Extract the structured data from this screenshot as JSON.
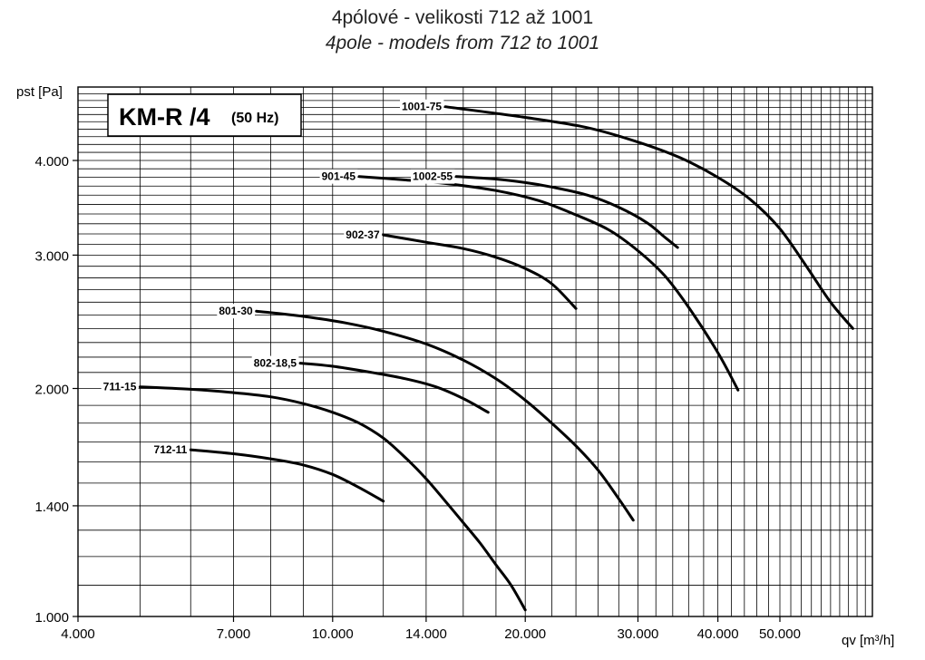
{
  "chart_data": {
    "type": "line",
    "title": "4pólové - velikosti 712 až 1001",
    "subtitle": "4pole - models from 712 to 1001",
    "xlabel": "qv [m³/h]",
    "ylabel": "pst [Pa]",
    "xscale": "log",
    "yscale": "log",
    "xlim": [
      4000,
      75000
    ],
    "ylim": [
      1000,
      5400
    ],
    "grid": true,
    "legend": "none",
    "xticks": [
      {
        "value": 4000,
        "label": "4.000"
      },
      {
        "value": 7000,
        "label": "7.000"
      },
      {
        "value": 10000,
        "label": "10.000"
      },
      {
        "value": 14000,
        "label": "14.000"
      },
      {
        "value": 20000,
        "label": "20.000"
      },
      {
        "value": 30000,
        "label": "30.000"
      },
      {
        "value": 40000,
        "label": "40.000"
      },
      {
        "value": 50000,
        "label": "50.000"
      }
    ],
    "yticks": [
      {
        "value": 1000,
        "label": "1.000"
      },
      {
        "value": 1400,
        "label": "1.400"
      },
      {
        "value": 2000,
        "label": "2.000"
      },
      {
        "value": 3000,
        "label": "3.000"
      },
      {
        "value": 4000,
        "label": "4.000"
      }
    ],
    "box": {
      "title": "KM-R /4",
      "subtitle": "(50 Hz)"
    },
    "series": [
      {
        "name": "1001-75",
        "x": [
          15000,
          20000,
          25000,
          30000,
          35000,
          40000,
          45000,
          50000,
          55000,
          60000,
          65000
        ],
        "y": [
          4710,
          4560,
          4420,
          4230,
          4030,
          3800,
          3550,
          3250,
          2900,
          2600,
          2400
        ]
      },
      {
        "name": "1002-55",
        "x": [
          15600,
          18000,
          20000,
          22000,
          25000,
          28000,
          31000,
          33000,
          34600
        ],
        "y": [
          3810,
          3780,
          3740,
          3690,
          3600,
          3470,
          3310,
          3170,
          3070
        ]
      },
      {
        "name": "901-45",
        "x": [
          11000,
          13000,
          15000,
          18000,
          21000,
          24000,
          27000,
          30000,
          33000,
          36000,
          40000,
          43000
        ],
        "y": [
          3810,
          3770,
          3730,
          3650,
          3540,
          3390,
          3240,
          3040,
          2820,
          2560,
          2230,
          1990
        ]
      },
      {
        "name": "902-37",
        "x": [
          12000,
          14000,
          16000,
          18000,
          20000,
          22000,
          24000
        ],
        "y": [
          3190,
          3120,
          3060,
          2980,
          2880,
          2750,
          2550
        ]
      },
      {
        "name": "801-30",
        "x": [
          7600,
          9000,
          10500,
          12000,
          14000,
          16000,
          18000,
          20000,
          22000,
          24000,
          26000,
          28000,
          29500
        ],
        "y": [
          2530,
          2490,
          2440,
          2380,
          2290,
          2180,
          2060,
          1930,
          1800,
          1680,
          1560,
          1430,
          1340
        ]
      },
      {
        "name": "802-18,5",
        "x": [
          8900,
          10000,
          11500,
          13000,
          14500,
          16000,
          17500
        ],
        "y": [
          2160,
          2140,
          2100,
          2060,
          2010,
          1940,
          1860
        ]
      },
      {
        "name": "711-15",
        "x": [
          5000,
          6000,
          7000,
          8000,
          9000,
          10000,
          11000,
          12000,
          13000,
          14000,
          15000,
          16000,
          17000,
          18000,
          19000,
          20000
        ],
        "y": [
          2010,
          1995,
          1975,
          1950,
          1910,
          1860,
          1800,
          1720,
          1620,
          1520,
          1420,
          1330,
          1250,
          1170,
          1100,
          1020
        ]
      },
      {
        "name": "712-11",
        "x": [
          6000,
          7000,
          8000,
          9000,
          10000,
          11000,
          12000
        ],
        "y": [
          1660,
          1640,
          1615,
          1585,
          1540,
          1480,
          1420
        ]
      }
    ]
  }
}
